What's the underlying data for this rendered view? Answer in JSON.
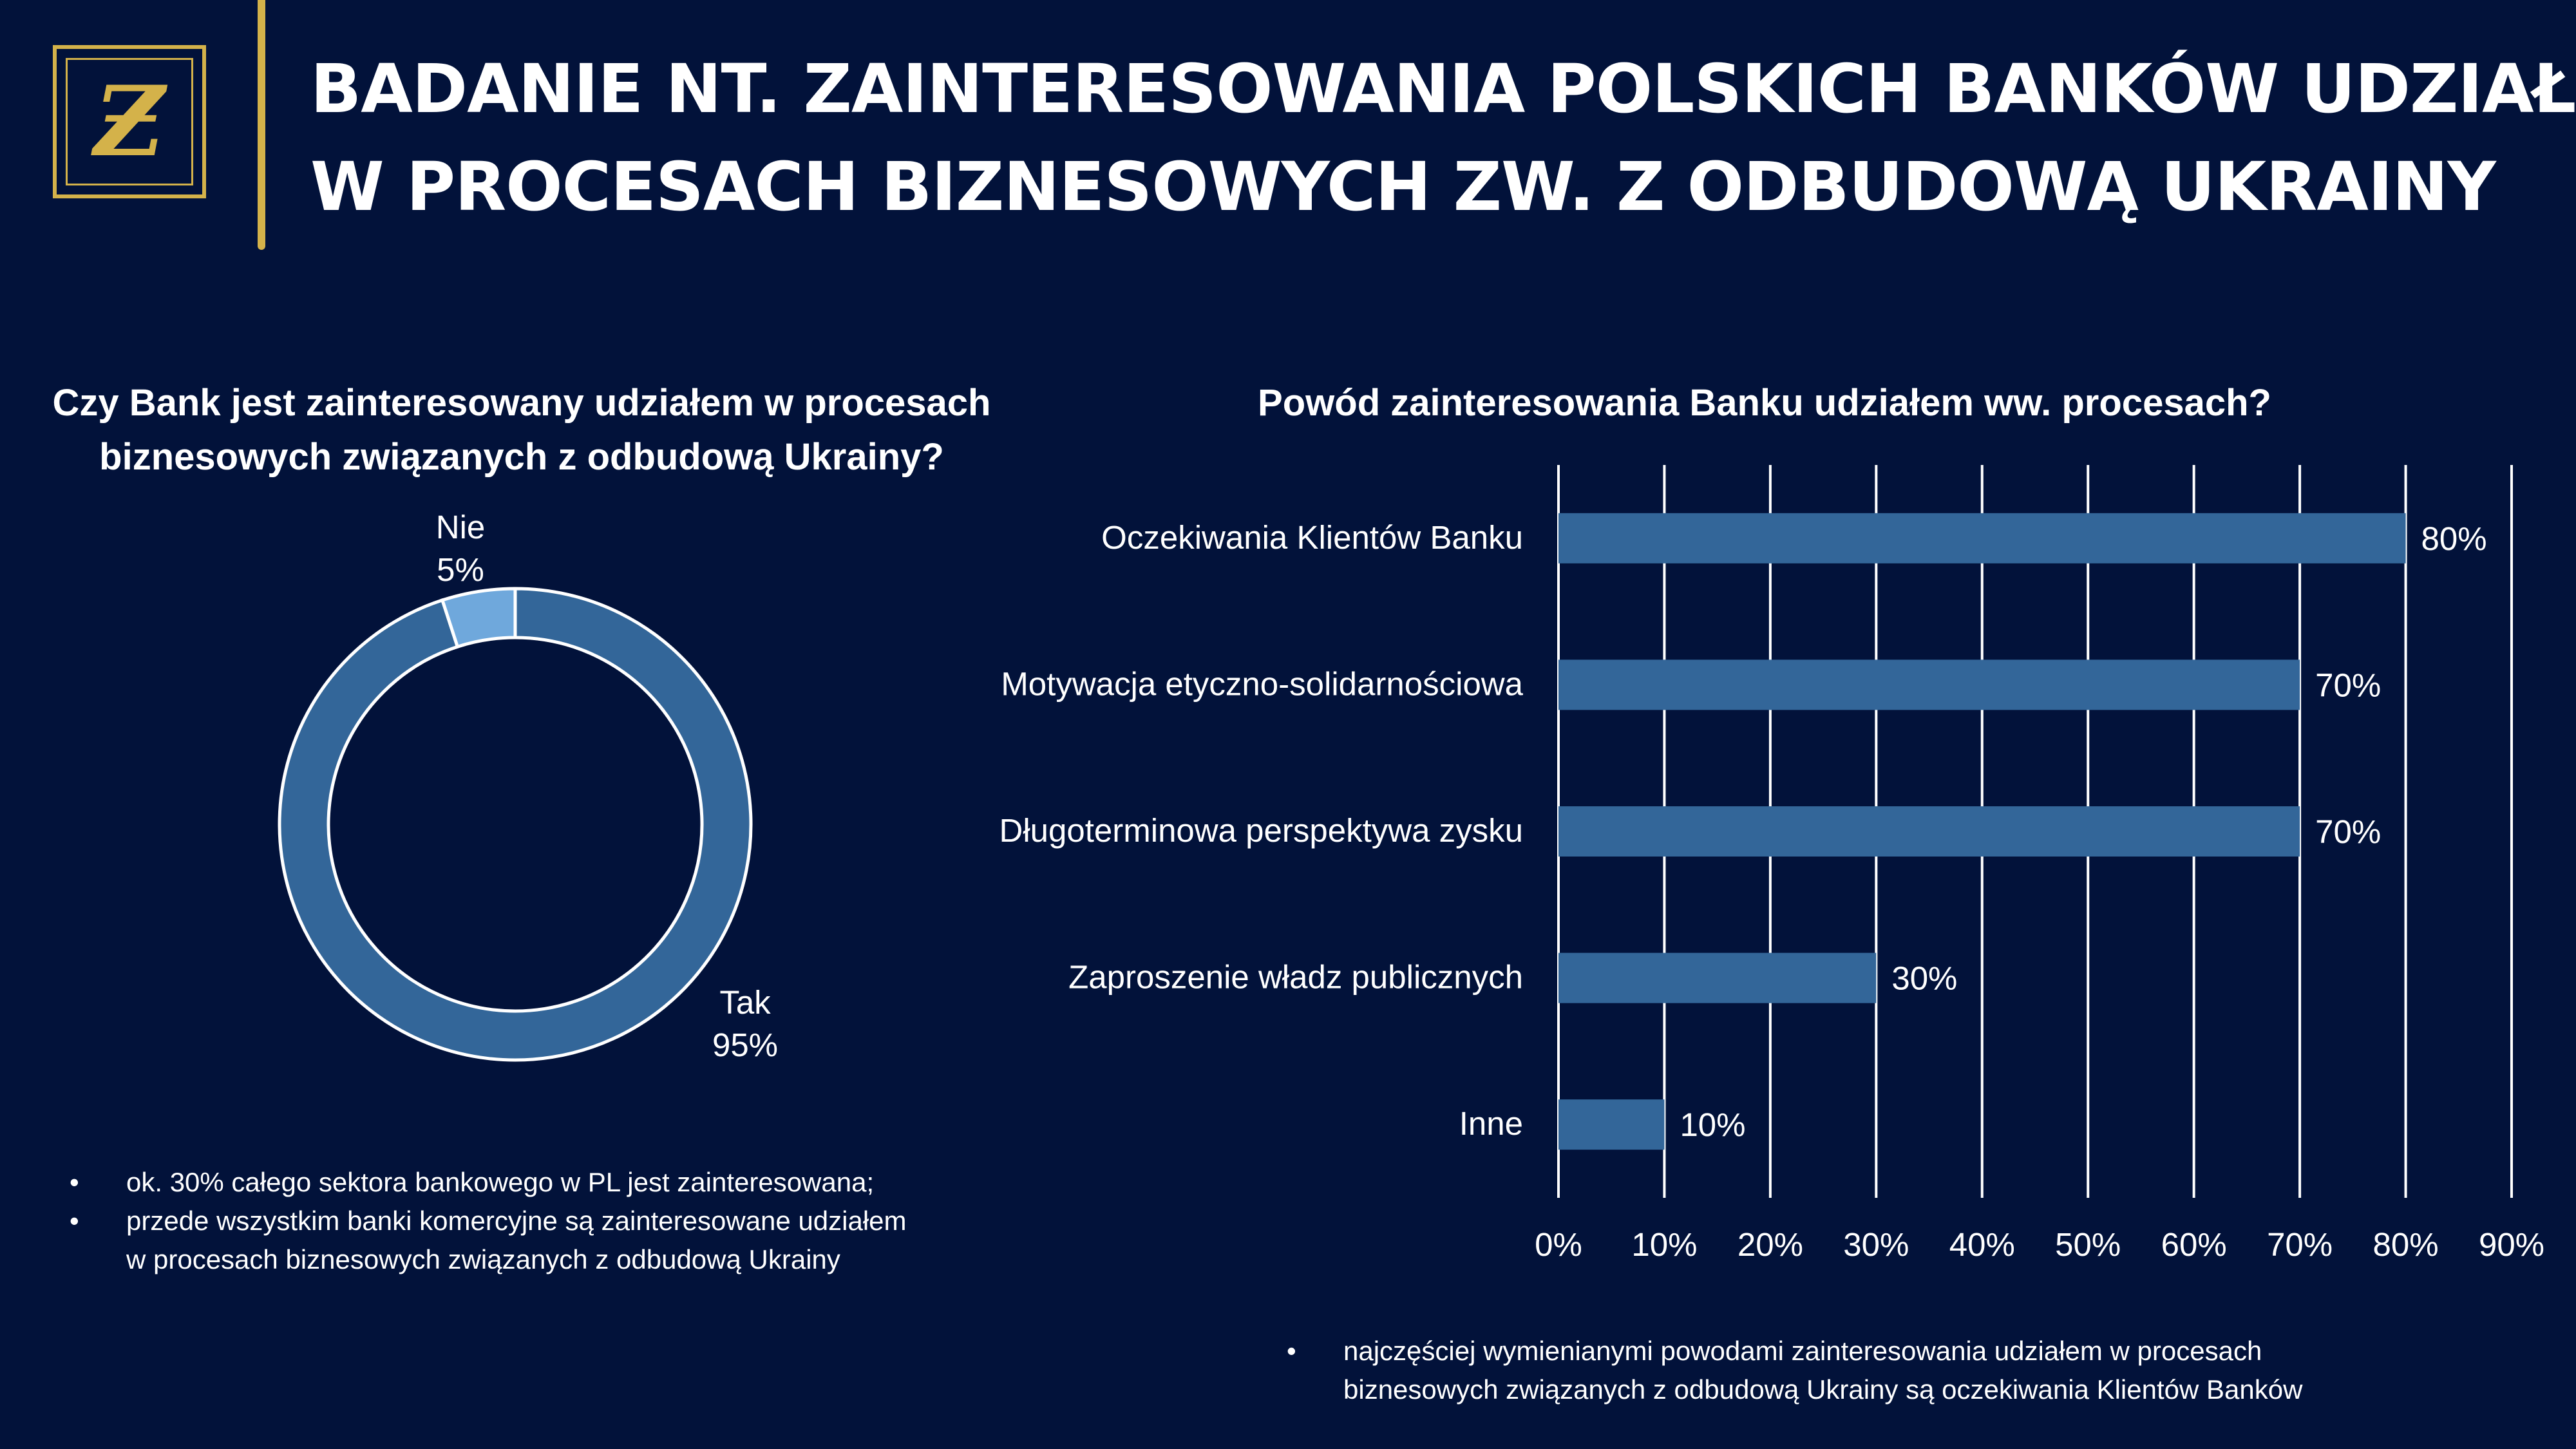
{
  "header": {
    "logo_text": "Ƶ",
    "title_line1": "BADANIE NT. ZAINTERESOWANIA POLSKICH BANKÓW UDZIAŁEM",
    "title_line2": "W PROCESACH BIZNESOWYCH ZW. Z ODBUDOWĄ UKRAINY"
  },
  "colors": {
    "background": "#02123a",
    "accent_gold": "#d4b24a",
    "series_main": "#336699",
    "series_light": "#6fa8dc"
  },
  "left_panel": {
    "title_line1": "Czy Bank jest zainteresowany udziałem w procesach",
    "title_line2": "biznesowych związanych z odbudową Ukrainy?",
    "notes": [
      {
        "bullet": "•",
        "text": "ok. 30% całego sektora bankowego w PL jest zainteresowana;"
      },
      {
        "bullet": "•",
        "text": "przede wszystkim banki komercyjne są zainteresowane udziałem"
      },
      {
        "bullet": "",
        "text": "w procesach biznesowych związanych z odbudową Ukrainy"
      }
    ]
  },
  "right_panel": {
    "title": "Powód zainteresowania Banku udziałem ww. procesach?",
    "notes": [
      {
        "bullet": "•",
        "text": "najczęściej wymienianymi powodami zainteresowania udziałem w procesach"
      },
      {
        "bullet": "",
        "text": "biznesowych związanych z odbudową Ukrainy są oczekiwania Klientów Banków"
      }
    ]
  },
  "chart_data": [
    {
      "type": "pie",
      "variant": "donut",
      "title": "Czy Bank jest zainteresowany udziałem w procesach biznesowych związanych z odbudową Ukrainy?",
      "slices": [
        {
          "label": "Tak",
          "value": 95,
          "value_label": "95%",
          "color": "#336699"
        },
        {
          "label": "Nie",
          "value": 5,
          "value_label": "5%",
          "color": "#6fa8dc"
        }
      ]
    },
    {
      "type": "bar",
      "orientation": "horizontal",
      "title": "Powód zainteresowania Banku udziałem ww. procesach?",
      "categories": [
        "Oczekiwania Klientów Banku",
        "Motywacja etyczno-solidarnościowa",
        "Długoterminowa perspektywa zysku",
        "Zaproszenie władz publicznych",
        "Inne"
      ],
      "values": [
        80,
        70,
        70,
        30,
        10
      ],
      "value_labels": [
        "80%",
        "70%",
        "70%",
        "30%",
        "10%"
      ],
      "xlim": [
        0,
        90
      ],
      "x_ticks": [
        "0%",
        "10%",
        "20%",
        "30%",
        "40%",
        "50%",
        "60%",
        "70%",
        "80%",
        "90%"
      ],
      "grid": true,
      "legend": "none",
      "color": "#336699"
    }
  ]
}
